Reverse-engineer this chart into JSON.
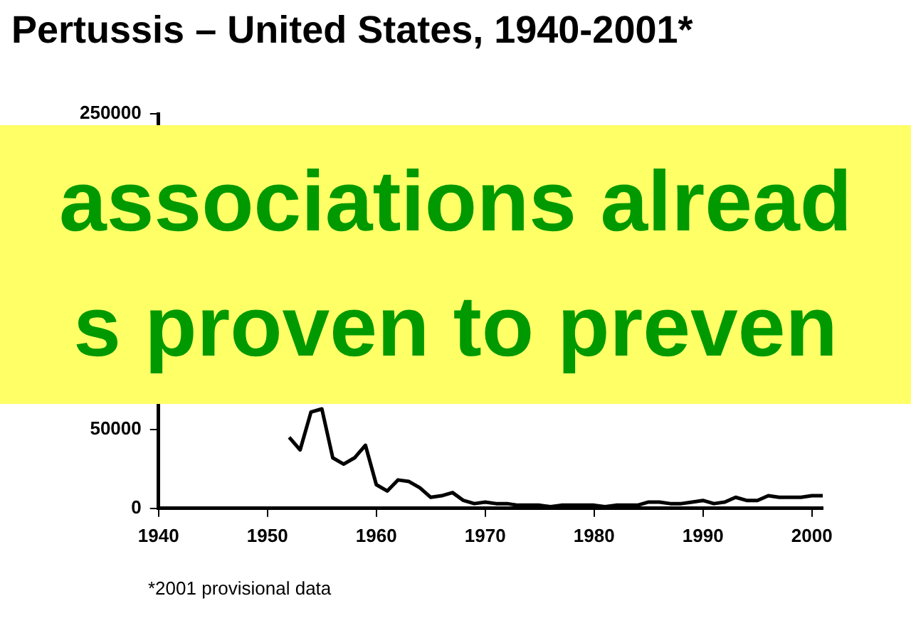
{
  "chart_data": {
    "type": "line",
    "title": "Pertussis – United States, 1940-2001*",
    "x": [
      1952,
      1953,
      1954,
      1955,
      1956,
      1957,
      1958,
      1959,
      1960,
      1961,
      1962,
      1963,
      1964,
      1965,
      1966,
      1967,
      1968,
      1969,
      1970,
      1971,
      1972,
      1973,
      1974,
      1975,
      1976,
      1977,
      1978,
      1979,
      1980,
      1981,
      1982,
      1983,
      1984,
      1985,
      1986,
      1987,
      1988,
      1989,
      1990,
      1991,
      1992,
      1993,
      1994,
      1995,
      1996,
      1997,
      1998,
      1999,
      2000,
      2001
    ],
    "series": [
      {
        "color": "#000000",
        "values": [
          45000,
          37000,
          61000,
          63000,
          32000,
          28000,
          32000,
          40000,
          15000,
          11000,
          18000,
          17000,
          13000,
          7000,
          8000,
          10000,
          5000,
          3000,
          4000,
          3000,
          3000,
          2000,
          2000,
          2000,
          1000,
          2000,
          2000,
          2000,
          2000,
          1000,
          2000,
          2000,
          2000,
          4000,
          4000,
          3000,
          3000,
          4000,
          5000,
          3000,
          4000,
          7000,
          5000,
          5000,
          8000,
          7000,
          7000,
          7000,
          8000,
          8000
        ]
      }
    ],
    "xlim": [
      1940,
      2001
    ],
    "xticks": [
      1940,
      1950,
      1960,
      1970,
      1980,
      1990,
      2000
    ],
    "ylim": [
      0,
      250000
    ],
    "yticks": [
      0,
      50000,
      250000
    ],
    "grid": false,
    "legend": false,
    "marker": "none",
    "line_style": "solid",
    "annotations": [
      "*2001 provisional data",
      "associations alread",
      "s proven to preven"
    ]
  }
}
